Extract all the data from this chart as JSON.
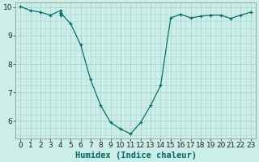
{
  "title": "",
  "xlabel": "Humidex (Indice chaleur)",
  "ylabel": "",
  "background_color": "#cceee8",
  "grid_color": "#b0d8d0",
  "line_color": "#006868",
  "marker": "+",
  "xlim": [
    -0.5,
    23.5
  ],
  "ylim": [
    5.4,
    10.15
  ],
  "xticks": [
    0,
    1,
    2,
    3,
    4,
    5,
    6,
    7,
    8,
    9,
    10,
    11,
    12,
    13,
    14,
    15,
    16,
    17,
    18,
    19,
    20,
    21,
    22,
    23
  ],
  "yticks": [
    6,
    7,
    8,
    9,
    10
  ],
  "x": [
    0,
    1,
    2,
    3,
    4,
    4,
    4,
    4,
    5,
    6,
    7,
    8,
    9,
    10,
    11,
    12,
    13,
    14,
    15,
    16,
    17,
    18,
    19,
    20,
    21,
    22,
    23
  ],
  "y": [
    10.02,
    9.88,
    9.82,
    9.72,
    9.88,
    9.8,
    9.72,
    9.8,
    9.42,
    8.68,
    7.45,
    6.55,
    5.95,
    5.72,
    5.55,
    5.95,
    6.55,
    7.25,
    9.62,
    9.75,
    9.62,
    9.68,
    9.72,
    9.72,
    9.6,
    9.72,
    9.82
  ],
  "xlabel_fontsize": 7.5,
  "tick_fontsize": 6.5
}
